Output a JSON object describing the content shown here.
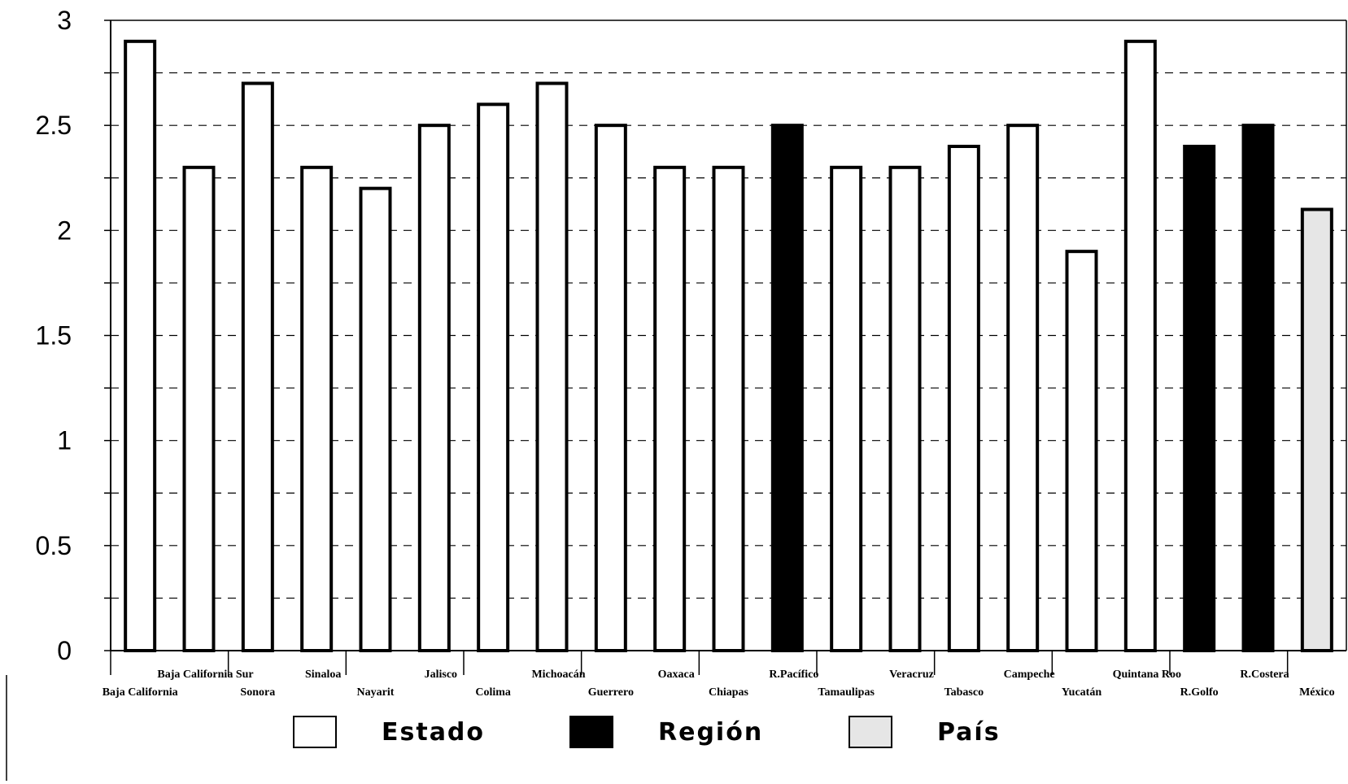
{
  "chart_data": {
    "type": "bar",
    "categories_row1": [
      "Baja California Sur",
      "Sinaloa",
      "Jalisco",
      "Michoacán",
      "Oaxaca",
      "R.Pacífico",
      "Veracruz",
      "Campeche",
      "Quintana Roo",
      "R.Costera"
    ],
    "categories_row2": [
      "Baja California",
      "Sonora",
      "Nayarit",
      "Colima",
      "Guerrero",
      "Chiapas",
      "Tamaulipas",
      "Tabasco",
      "Yucatán",
      "R.Golfo",
      "México"
    ],
    "values": [
      2.9,
      2.3,
      2.7,
      2.3,
      2.2,
      2.5,
      2.6,
      2.7,
      2.5,
      2.3,
      2.3,
      2.5,
      2.3,
      2.3,
      2.4,
      2.5,
      1.9,
      2.9,
      2.4,
      2.5,
      2.1
    ],
    "kinds": [
      "Estado",
      "Estado",
      "Estado",
      "Estado",
      "Estado",
      "Estado",
      "Estado",
      "Estado",
      "Estado",
      "Estado",
      "Estado",
      "Región",
      "Estado",
      "Estado",
      "Estado",
      "Estado",
      "Estado",
      "Estado",
      "Región",
      "Región",
      "País"
    ],
    "ylim": [
      0,
      3
    ],
    "yticks": [
      "0",
      "0.5",
      "1",
      "1.5",
      "2",
      "2.5",
      "3"
    ],
    "grid": true,
    "legend": {
      "placement": "bottom",
      "items": [
        {
          "label": "Estado",
          "color": "#ffffff"
        },
        {
          "label": "Región",
          "color": "#000000"
        },
        {
          "label": "País",
          "color": "#e6e6e6"
        }
      ]
    },
    "title": "",
    "xlabel": "",
    "ylabel": ""
  }
}
